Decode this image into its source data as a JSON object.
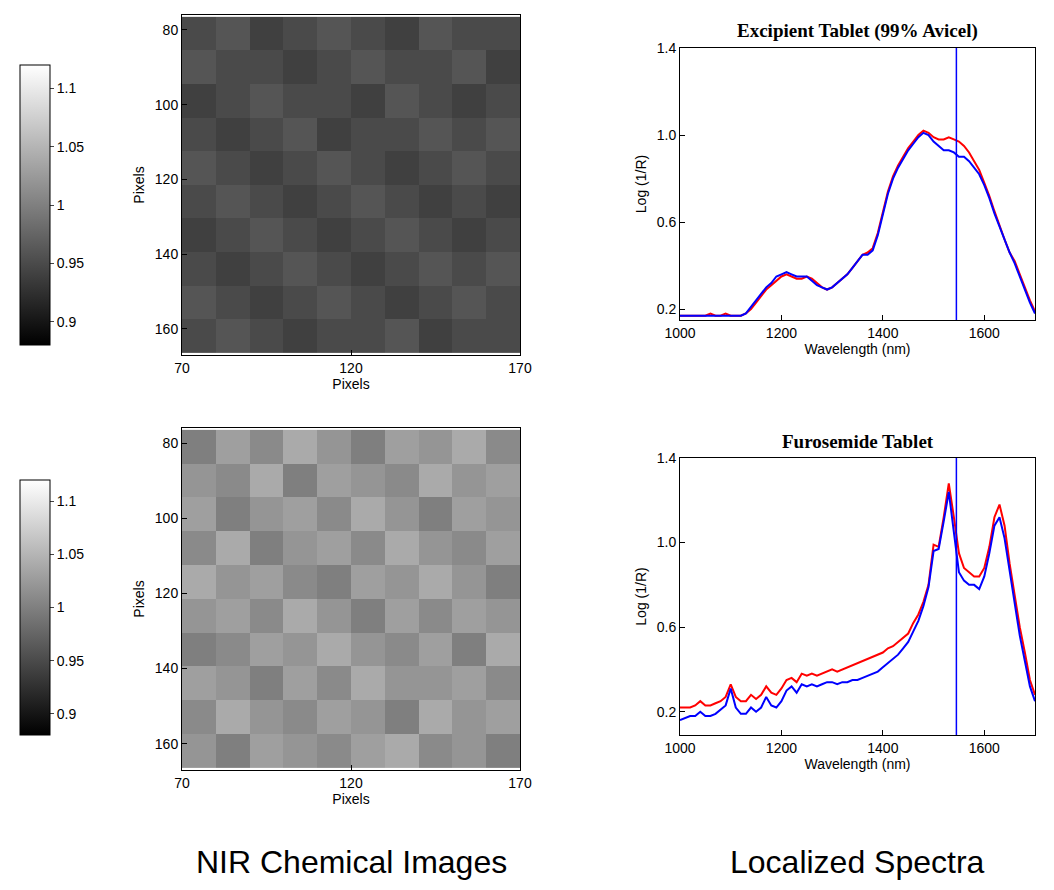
{
  "chart_data": [
    {
      "type": "heatmap",
      "xlabel": "Pixels",
      "ylabel": "Pixels",
      "x": [
        75,
        85,
        95,
        105,
        115,
        125,
        135,
        145,
        155,
        165
      ],
      "y": [
        81,
        90,
        99,
        108,
        117,
        126,
        135,
        144,
        153,
        162
      ],
      "cells": [
        [
          0.95,
          0.96,
          0.94,
          0.95,
          0.96,
          0.95,
          0.94,
          0.96,
          0.95,
          0.95
        ],
        [
          0.96,
          0.95,
          0.95,
          0.94,
          0.95,
          0.96,
          0.95,
          0.95,
          0.96,
          0.94
        ],
        [
          0.94,
          0.95,
          0.96,
          0.95,
          0.95,
          0.94,
          0.96,
          0.95,
          0.94,
          0.95
        ],
        [
          0.95,
          0.94,
          0.95,
          0.96,
          0.94,
          0.95,
          0.95,
          0.96,
          0.95,
          0.96
        ],
        [
          0.96,
          0.95,
          0.94,
          0.95,
          0.96,
          0.95,
          0.94,
          0.95,
          0.96,
          0.95
        ],
        [
          0.95,
          0.96,
          0.95,
          0.94,
          0.95,
          0.96,
          0.95,
          0.94,
          0.95,
          0.94
        ],
        [
          0.94,
          0.95,
          0.96,
          0.95,
          0.94,
          0.95,
          0.96,
          0.95,
          0.94,
          0.95
        ],
        [
          0.95,
          0.94,
          0.95,
          0.96,
          0.95,
          0.94,
          0.95,
          0.96,
          0.95,
          0.96
        ],
        [
          0.96,
          0.95,
          0.94,
          0.95,
          0.96,
          0.95,
          0.94,
          0.95,
          0.96,
          0.95
        ],
        [
          0.95,
          0.96,
          0.95,
          0.94,
          0.95,
          0.95,
          0.96,
          0.94,
          0.95,
          0.95
        ]
      ],
      "color_range": [
        0.88,
        1.12
      ],
      "color_ticks": [
        0.9,
        0.95,
        1,
        1.05,
        1.1
      ],
      "xlim": [
        70,
        170
      ],
      "xticks": [
        70,
        120,
        170
      ],
      "ylim": [
        167,
        76
      ],
      "yticks": [
        80,
        100,
        120,
        140,
        160
      ]
    },
    {
      "type": "line",
      "title": "Excipient Tablet (99% Avicel)",
      "xlabel": "Wavelength (nm)",
      "ylabel": "Log (1/R)",
      "x": [
        1000,
        1010,
        1020,
        1030,
        1040,
        1050,
        1060,
        1070,
        1080,
        1090,
        1100,
        1110,
        1120,
        1130,
        1140,
        1150,
        1160,
        1170,
        1180,
        1190,
        1200,
        1210,
        1220,
        1230,
        1240,
        1250,
        1260,
        1270,
        1280,
        1290,
        1300,
        1310,
        1320,
        1330,
        1340,
        1350,
        1360,
        1370,
        1380,
        1390,
        1400,
        1410,
        1420,
        1430,
        1440,
        1450,
        1460,
        1470,
        1480,
        1490,
        1500,
        1510,
        1520,
        1530,
        1540,
        1550,
        1560,
        1570,
        1580,
        1590,
        1600,
        1610,
        1620,
        1630,
        1640,
        1650,
        1660,
        1670,
        1680,
        1690,
        1700
      ],
      "series": [
        {
          "color": "#ff0000",
          "values": [
            0.17,
            0.17,
            0.17,
            0.17,
            0.17,
            0.17,
            0.18,
            0.17,
            0.17,
            0.18,
            0.17,
            0.17,
            0.17,
            0.18,
            0.2,
            0.23,
            0.26,
            0.29,
            0.31,
            0.33,
            0.35,
            0.36,
            0.35,
            0.34,
            0.34,
            0.35,
            0.34,
            0.32,
            0.3,
            0.29,
            0.3,
            0.32,
            0.34,
            0.36,
            0.39,
            0.42,
            0.45,
            0.46,
            0.48,
            0.55,
            0.65,
            0.74,
            0.81,
            0.86,
            0.9,
            0.94,
            0.97,
            1.0,
            1.02,
            1.01,
            0.99,
            0.98,
            0.98,
            0.99,
            0.98,
            0.97,
            0.95,
            0.92,
            0.88,
            0.84,
            0.78,
            0.72,
            0.65,
            0.58,
            0.52,
            0.46,
            0.42,
            0.36,
            0.3,
            0.24,
            0.19
          ]
        },
        {
          "color": "#0000ff",
          "values": [
            0.17,
            0.17,
            0.17,
            0.17,
            0.17,
            0.17,
            0.17,
            0.17,
            0.17,
            0.17,
            0.17,
            0.17,
            0.17,
            0.18,
            0.21,
            0.24,
            0.27,
            0.3,
            0.32,
            0.35,
            0.36,
            0.37,
            0.36,
            0.35,
            0.35,
            0.35,
            0.33,
            0.31,
            0.3,
            0.29,
            0.3,
            0.32,
            0.34,
            0.36,
            0.39,
            0.42,
            0.45,
            0.45,
            0.47,
            0.54,
            0.64,
            0.73,
            0.8,
            0.85,
            0.89,
            0.93,
            0.96,
            0.99,
            1.01,
            1.0,
            0.97,
            0.95,
            0.93,
            0.93,
            0.92,
            0.9,
            0.9,
            0.88,
            0.85,
            0.82,
            0.77,
            0.71,
            0.64,
            0.58,
            0.52,
            0.46,
            0.41,
            0.35,
            0.29,
            0.23,
            0.18
          ]
        }
      ],
      "reference_line": 1545,
      "xlim": [
        1000,
        1700
      ],
      "xticks": [
        1000,
        1200,
        1400,
        1600
      ],
      "ylim": [
        0.15,
        1.4
      ],
      "yticks": [
        0.2,
        0.6,
        {
          "value": 1,
          "label": "1.0"
        },
        1.4
      ]
    },
    {
      "type": "heatmap",
      "xlabel": "Pixels",
      "ylabel": "Pixels",
      "x": [
        75,
        85,
        95,
        105,
        115,
        125,
        135,
        145,
        155,
        165
      ],
      "y": [
        81,
        90,
        99,
        108,
        117,
        126,
        135,
        144,
        153,
        162
      ],
      "cells": [
        [
          1.0,
          1.03,
          1.01,
          1.04,
          1.02,
          1.0,
          1.03,
          1.02,
          1.04,
          1.01
        ],
        [
          1.02,
          1.01,
          1.04,
          1.0,
          1.03,
          1.02,
          1.01,
          1.04,
          1.02,
          1.03
        ],
        [
          1.03,
          1.0,
          1.02,
          1.03,
          1.01,
          1.04,
          1.02,
          1.0,
          1.03,
          1.02
        ],
        [
          1.01,
          1.04,
          1.0,
          1.02,
          1.03,
          1.01,
          1.04,
          1.02,
          1.01,
          1.03
        ],
        [
          1.04,
          1.02,
          1.03,
          1.01,
          1.0,
          1.03,
          1.02,
          1.04,
          1.02,
          1.0
        ],
        [
          1.02,
          1.03,
          1.01,
          1.04,
          1.02,
          1.0,
          1.03,
          1.01,
          1.03,
          1.02
        ],
        [
          1.0,
          1.01,
          1.03,
          1.02,
          1.04,
          1.02,
          1.01,
          1.03,
          1.0,
          1.04
        ],
        [
          1.03,
          1.02,
          1.0,
          1.03,
          1.01,
          1.04,
          1.02,
          1.02,
          1.03,
          1.01
        ],
        [
          1.01,
          1.04,
          1.02,
          1.01,
          1.03,
          1.02,
          1.0,
          1.04,
          1.02,
          1.03
        ],
        [
          1.02,
          1.0,
          1.03,
          1.02,
          1.01,
          1.03,
          1.04,
          1.01,
          1.02,
          1.0
        ]
      ],
      "color_range": [
        0.88,
        1.12
      ],
      "color_ticks": [
        0.9,
        0.95,
        1,
        1.05,
        1.1
      ],
      "xlim": [
        70,
        170
      ],
      "xticks": [
        70,
        120,
        170
      ],
      "ylim": [
        167,
        76
      ],
      "yticks": [
        80,
        100,
        120,
        140,
        160
      ],
      "annotations": [
        "NIR Chemical Images"
      ]
    },
    {
      "type": "line",
      "title": "Furosemide Tablet",
      "xlabel": "Wavelength (nm)",
      "ylabel": "Log (1/R)",
      "x": [
        1000,
        1010,
        1020,
        1030,
        1040,
        1050,
        1060,
        1070,
        1080,
        1090,
        1100,
        1110,
        1120,
        1130,
        1140,
        1150,
        1160,
        1170,
        1180,
        1190,
        1200,
        1210,
        1220,
        1230,
        1240,
        1250,
        1260,
        1270,
        1280,
        1290,
        1300,
        1310,
        1320,
        1330,
        1340,
        1350,
        1360,
        1370,
        1380,
        1390,
        1400,
        1410,
        1420,
        1430,
        1440,
        1450,
        1460,
        1470,
        1480,
        1490,
        1500,
        1510,
        1520,
        1530,
        1540,
        1550,
        1560,
        1570,
        1580,
        1590,
        1600,
        1610,
        1620,
        1630,
        1640,
        1650,
        1660,
        1670,
        1680,
        1690,
        1700
      ],
      "series": [
        {
          "color": "#ff0000",
          "values": [
            0.22,
            0.22,
            0.22,
            0.23,
            0.25,
            0.23,
            0.23,
            0.24,
            0.25,
            0.27,
            0.33,
            0.27,
            0.25,
            0.25,
            0.28,
            0.26,
            0.28,
            0.32,
            0.29,
            0.28,
            0.31,
            0.35,
            0.36,
            0.34,
            0.38,
            0.37,
            0.38,
            0.37,
            0.38,
            0.39,
            0.4,
            0.39,
            0.4,
            0.41,
            0.42,
            0.43,
            0.44,
            0.45,
            0.46,
            0.47,
            0.48,
            0.5,
            0.51,
            0.53,
            0.55,
            0.57,
            0.62,
            0.66,
            0.72,
            0.8,
            0.99,
            0.98,
            1.12,
            1.28,
            1.12,
            0.95,
            0.88,
            0.86,
            0.84,
            0.84,
            0.88,
            0.98,
            1.12,
            1.18,
            1.08,
            0.9,
            0.75,
            0.6,
            0.48,
            0.35,
            0.28
          ]
        },
        {
          "color": "#0000ff",
          "values": [
            0.16,
            0.17,
            0.18,
            0.18,
            0.2,
            0.18,
            0.18,
            0.19,
            0.21,
            0.23,
            0.31,
            0.22,
            0.19,
            0.19,
            0.22,
            0.2,
            0.22,
            0.27,
            0.23,
            0.22,
            0.25,
            0.3,
            0.32,
            0.29,
            0.33,
            0.32,
            0.33,
            0.32,
            0.33,
            0.34,
            0.34,
            0.33,
            0.34,
            0.34,
            0.35,
            0.35,
            0.36,
            0.37,
            0.38,
            0.39,
            0.41,
            0.43,
            0.45,
            0.47,
            0.5,
            0.53,
            0.58,
            0.63,
            0.7,
            0.79,
            0.96,
            0.97,
            1.1,
            1.24,
            1.05,
            0.86,
            0.82,
            0.8,
            0.8,
            0.78,
            0.84,
            0.95,
            1.08,
            1.12,
            1.02,
            0.86,
            0.7,
            0.56,
            0.44,
            0.32,
            0.25
          ]
        }
      ],
      "reference_line": 1545,
      "xlim": [
        1000,
        1700
      ],
      "xticks": [
        1000,
        1200,
        1400,
        1600
      ],
      "ylim": [
        0.09,
        1.4
      ],
      "yticks": [
        0.2,
        0.6,
        {
          "value": 1,
          "label": "1.0"
        },
        1.4
      ],
      "annotations": [
        "Localized Spectra"
      ]
    }
  ]
}
